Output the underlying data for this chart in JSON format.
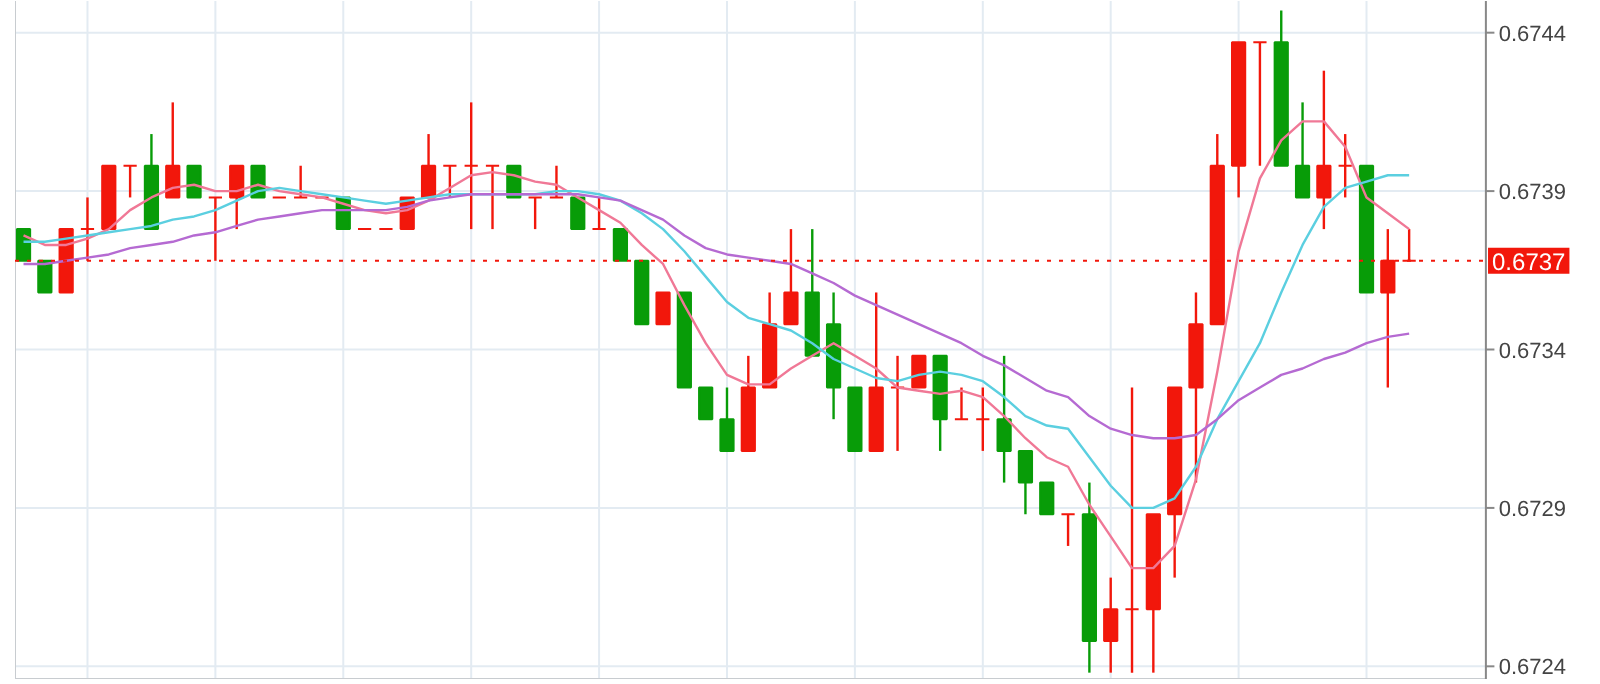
{
  "chart_data": {
    "type": "candlestick",
    "categories": [
      null,
      null,
      null,
      null,
      null,
      null,
      null,
      null,
      null,
      null,
      null,
      null,
      null,
      null,
      null,
      null,
      null,
      null,
      null,
      null,
      null,
      null,
      null,
      null,
      null,
      null,
      null,
      null,
      null,
      null,
      null,
      null,
      null,
      null,
      null,
      null,
      null,
      null,
      null,
      null,
      null,
      null,
      null,
      null,
      null,
      null,
      null,
      null,
      null,
      null,
      null,
      null,
      null,
      null,
      null,
      null,
      null,
      null,
      null,
      null,
      null,
      null,
      null,
      null,
      null,
      null
    ],
    "ohlc": [
      [
        0.67378,
        0.67378,
        0.67368,
        0.67368
      ],
      [
        0.67368,
        0.67368,
        0.67358,
        0.67358
      ],
      [
        0.67358,
        0.67378,
        0.67358,
        0.67378
      ],
      [
        0.67378,
        0.67388,
        0.67368,
        0.67378
      ],
      [
        0.67378,
        0.67398,
        0.67378,
        0.67398
      ],
      [
        0.67398,
        0.67398,
        0.67388,
        0.67398
      ],
      [
        0.67398,
        0.67408,
        0.67378,
        0.67378
      ],
      [
        0.67388,
        0.67418,
        0.67388,
        0.67398
      ],
      [
        0.67398,
        0.67398,
        0.67388,
        0.67388
      ],
      [
        0.67388,
        0.67388,
        0.67368,
        0.67388
      ],
      [
        0.67388,
        0.67398,
        0.67378,
        0.67398
      ],
      [
        0.67398,
        0.67398,
        0.67388,
        0.67388
      ],
      [
        0.67388,
        0.67388,
        0.67388,
        0.67388
      ],
      [
        0.67388,
        0.67398,
        0.67388,
        0.67388
      ],
      [
        0.67388,
        0.67388,
        0.67388,
        0.67388
      ],
      [
        0.67388,
        0.67388,
        0.67378,
        0.67378
      ],
      [
        0.67378,
        0.67378,
        0.67378,
        0.67378
      ],
      [
        0.67378,
        0.67378,
        0.67378,
        0.67378
      ],
      [
        0.67378,
        0.67388,
        0.67378,
        0.67388
      ],
      [
        0.67388,
        0.67408,
        0.67388,
        0.67398
      ],
      [
        0.67398,
        0.67398,
        0.67388,
        0.67398
      ],
      [
        0.67398,
        0.67418,
        0.67378,
        0.67398
      ],
      [
        0.67398,
        0.67398,
        0.67378,
        0.67398
      ],
      [
        0.67398,
        0.67398,
        0.67388,
        0.67388
      ],
      [
        0.67388,
        0.67388,
        0.67378,
        0.67388
      ],
      [
        0.67388,
        0.67398,
        0.67388,
        0.67388
      ],
      [
        0.67388,
        0.67388,
        0.67378,
        0.67378
      ],
      [
        0.67378,
        0.67388,
        0.67378,
        0.67378
      ],
      [
        0.67378,
        0.67378,
        0.67368,
        0.67368
      ],
      [
        0.67368,
        0.67368,
        0.67348,
        0.67348
      ],
      [
        0.67348,
        0.67358,
        0.67348,
        0.67358
      ],
      [
        0.67358,
        0.67358,
        0.67328,
        0.67328
      ],
      [
        0.67328,
        0.67328,
        0.67318,
        0.67318
      ],
      [
        0.67318,
        0.67328,
        0.67308,
        0.67308
      ],
      [
        0.67308,
        0.67338,
        0.67308,
        0.67328
      ],
      [
        0.67328,
        0.67358,
        0.67328,
        0.67348
      ],
      [
        0.67348,
        0.67378,
        0.67348,
        0.67358
      ],
      [
        0.67358,
        0.67378,
        0.67338,
        0.67338
      ],
      [
        0.67348,
        0.67358,
        0.67318,
        0.67328
      ],
      [
        0.67328,
        0.67328,
        0.67308,
        0.67308
      ],
      [
        0.67308,
        0.67358,
        0.67308,
        0.67328
      ],
      [
        0.67328,
        0.67338,
        0.67308,
        0.67328
      ],
      [
        0.67328,
        0.67338,
        0.67328,
        0.67338
      ],
      [
        0.67338,
        0.67338,
        0.67308,
        0.67318
      ],
      [
        0.67318,
        0.67328,
        0.67318,
        0.67318
      ],
      [
        0.67318,
        0.67328,
        0.67308,
        0.67318
      ],
      [
        0.67318,
        0.67338,
        0.67298,
        0.67308
      ],
      [
        0.67308,
        0.67308,
        0.67288,
        0.67298
      ],
      [
        0.67298,
        0.67298,
        0.67288,
        0.67288
      ],
      [
        0.67288,
        0.67288,
        0.67278,
        0.67288
      ],
      [
        0.67288,
        0.67298,
        0.67238,
        0.67248
      ],
      [
        0.67248,
        0.67268,
        0.67238,
        0.67258
      ],
      [
        0.67258,
        0.67328,
        0.67238,
        0.67258
      ],
      [
        0.67258,
        0.67288,
        0.67238,
        0.67288
      ],
      [
        0.67288,
        0.67328,
        0.67268,
        0.67328
      ],
      [
        0.67328,
        0.67358,
        0.67298,
        0.67348
      ],
      [
        0.67348,
        0.67408,
        0.67348,
        0.67398
      ],
      [
        0.67398,
        0.67437,
        0.67388,
        0.67437
      ],
      [
        0.67437,
        0.67437,
        0.67398,
        0.67437
      ],
      [
        0.67437,
        0.67447,
        0.67398,
        0.67398
      ],
      [
        0.67398,
        0.67418,
        0.67388,
        0.67388
      ],
      [
        0.67388,
        0.67428,
        0.67378,
        0.67398
      ],
      [
        0.67398,
        0.67408,
        0.67388,
        0.67398
      ],
      [
        0.67398,
        0.67398,
        0.67358,
        0.67358
      ],
      [
        0.67358,
        0.67378,
        0.67328,
        0.67368
      ],
      [
        0.67368,
        0.67378,
        0.67368,
        0.67368
      ]
    ],
    "colors": [
      "#089c08",
      "#089c08",
      "#f2170b",
      "#f2170b",
      "#f2170b",
      "#f2170b",
      "#089c08",
      "#f2170b",
      "#089c08",
      "#f2170b",
      "#f2170b",
      "#089c08",
      "#f2170b",
      "#f2170b",
      "#f2170b",
      "#089c08",
      "#f2170b",
      "#f2170b",
      "#f2170b",
      "#f2170b",
      "#f2170b",
      "#f2170b",
      "#f2170b",
      "#089c08",
      "#f2170b",
      "#f2170b",
      "#089c08",
      "#f2170b",
      "#089c08",
      "#089c08",
      "#f2170b",
      "#089c08",
      "#089c08",
      "#089c08",
      "#f2170b",
      "#f2170b",
      "#f2170b",
      "#089c08",
      "#089c08",
      "#089c08",
      "#f2170b",
      "#f2170b",
      "#f2170b",
      "#089c08",
      "#f2170b",
      "#f2170b",
      "#089c08",
      "#089c08",
      "#089c08",
      "#f2170b",
      "#089c08",
      "#f2170b",
      "#f2170b",
      "#f2170b",
      "#f2170b",
      "#f2170b",
      "#f2170b",
      "#f2170b",
      "#f2170b",
      "#089c08",
      "#089c08",
      "#f2170b",
      "#f2170b",
      "#089c08",
      "#f2170b",
      "#f2170b"
    ],
    "series": [
      {
        "type": "line",
        "color": "#f07896",
        "values": [
          0.67376,
          0.67373,
          0.67373,
          0.67375,
          0.67378,
          0.67384,
          0.67388,
          0.67391,
          0.67392,
          0.6739,
          0.6739,
          0.67392,
          0.6739,
          0.67389,
          0.67388,
          0.67386,
          0.67384,
          0.67383,
          0.67384,
          0.67387,
          0.67391,
          0.67395,
          0.67396,
          0.67395,
          0.67393,
          0.67392,
          0.67388,
          0.67384,
          0.6738,
          0.67373,
          0.67367,
          0.67354,
          0.67342,
          0.67332,
          0.67329,
          0.67329,
          0.67334,
          0.67338,
          0.67342,
          0.67338,
          0.67334,
          0.67328,
          0.67327,
          0.67326,
          0.67327,
          0.67325,
          0.67319,
          0.67312,
          0.67306,
          0.67303,
          0.67291,
          0.67281,
          0.67271,
          0.67271,
          0.67278,
          0.67299,
          0.67333,
          0.67371,
          0.67394,
          0.67406,
          0.67412,
          0.67412,
          0.67404,
          0.67388,
          0.67383,
          0.67378
        ]
      },
      {
        "type": "line",
        "color": "#5bcfe0",
        "values": [
          0.67374,
          0.67374,
          0.67375,
          0.67376,
          0.67377,
          0.67378,
          0.67379,
          0.67381,
          0.67382,
          0.67384,
          0.67387,
          0.6739,
          0.67391,
          0.6739,
          0.67389,
          0.67388,
          0.67387,
          0.67386,
          0.67387,
          0.67388,
          0.67389,
          0.67389,
          0.67389,
          0.67389,
          0.67389,
          0.6739,
          0.6739,
          0.67389,
          0.67387,
          0.67383,
          0.67378,
          0.67371,
          0.67363,
          0.67355,
          0.6735,
          0.67348,
          0.67346,
          0.67342,
          0.67337,
          0.67334,
          0.67331,
          0.6733,
          0.67332,
          0.67333,
          0.67332,
          0.6733,
          0.67325,
          0.67319,
          0.67316,
          0.67315,
          0.67306,
          0.67297,
          0.6729,
          0.6729,
          0.67293,
          0.67303,
          0.67318,
          0.6733,
          0.67342,
          0.67358,
          0.67373,
          0.67385,
          0.67391,
          0.67393,
          0.67395,
          0.67395
        ]
      },
      {
        "type": "line",
        "color": "#b56ad2",
        "values": [
          0.67367,
          0.67367,
          0.67368,
          0.67369,
          0.6737,
          0.67372,
          0.67373,
          0.67374,
          0.67376,
          0.67377,
          0.67379,
          0.67381,
          0.67382,
          0.67383,
          0.67384,
          0.67384,
          0.67384,
          0.67384,
          0.67385,
          0.67387,
          0.67388,
          0.67389,
          0.67389,
          0.67389,
          0.67389,
          0.67389,
          0.67389,
          0.67388,
          0.67387,
          0.67384,
          0.67381,
          0.67376,
          0.67372,
          0.6737,
          0.67369,
          0.67368,
          0.67367,
          0.67364,
          0.67361,
          0.67357,
          0.67354,
          0.67351,
          0.67348,
          0.67345,
          0.67342,
          0.67338,
          0.67335,
          0.67331,
          0.67327,
          0.67325,
          0.67319,
          0.67315,
          0.67313,
          0.67312,
          0.67312,
          0.67313,
          0.67318,
          0.67324,
          0.67328,
          0.67332,
          0.67334,
          0.67337,
          0.67339,
          0.67342,
          0.67344,
          0.67345
        ]
      }
    ],
    "ylim": [
      0.67236,
      0.6745
    ],
    "yticks": [
      0.6724,
      0.6729,
      0.6734,
      0.6739,
      0.6744
    ],
    "grid": true,
    "ref_lines": [
      {
        "axis": "y",
        "value": 0.67368,
        "label": "0.6737",
        "color": "#f2170b",
        "line_style": "dotted"
      }
    ]
  }
}
